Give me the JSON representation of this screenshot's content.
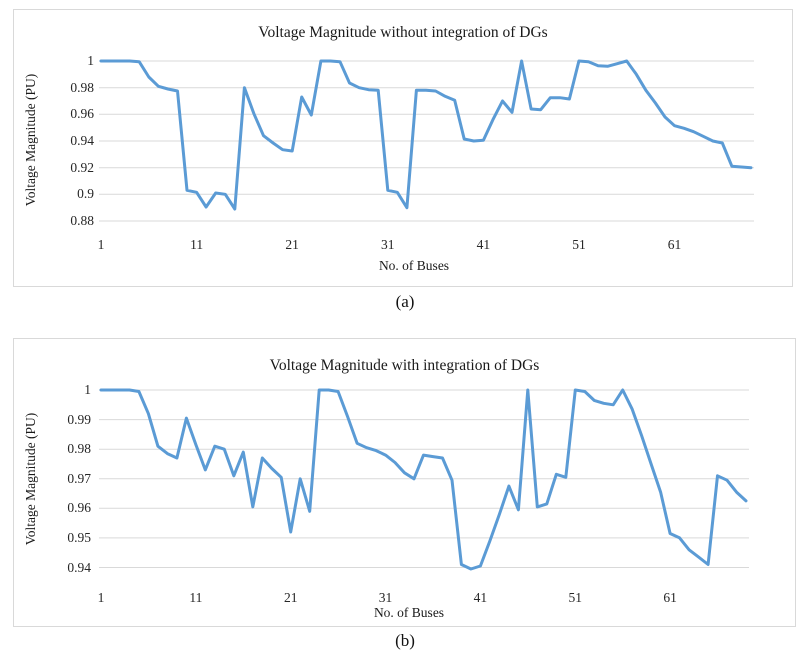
{
  "colors": {
    "line": "#5b9bd5",
    "grid": "#d9d9d9",
    "panel_border": "#d9d9d9",
    "text": "#1a1a1a"
  },
  "captions": {
    "a": "(a)",
    "b": "(b)"
  },
  "chart_data": [
    {
      "type": "line",
      "title": "Voltage Magnitude without integration of DGs",
      "xlabel": "No. of Buses",
      "ylabel": "Voltage Magnitude (PU)",
      "legend": "none",
      "grid": "horizontal-only",
      "ylim": [
        0.88,
        1.0
      ],
      "x_range": [
        1,
        69
      ],
      "x_ticks": [
        1,
        11,
        21,
        31,
        41,
        51,
        61
      ],
      "y_tick_labels": [
        "1",
        "0.98",
        "0.96",
        "0.94",
        "0.92",
        "0.9",
        "0.88"
      ],
      "values": [
        1.0,
        1.0,
        1.0,
        1.0,
        0.9995,
        0.988,
        0.981,
        0.979,
        0.9775,
        0.903,
        0.9015,
        0.8905,
        0.901,
        0.9,
        0.889,
        0.98,
        0.9605,
        0.944,
        0.9385,
        0.9335,
        0.9325,
        0.973,
        0.9595,
        1.0,
        1.0,
        0.9995,
        0.9835,
        0.98,
        0.9785,
        0.978,
        0.903,
        0.9015,
        0.89,
        0.978,
        0.978,
        0.9775,
        0.9735,
        0.9705,
        0.9415,
        0.94,
        0.9405,
        0.956,
        0.97,
        0.9615,
        1.0,
        0.964,
        0.9635,
        0.9725,
        0.9725,
        0.9715,
        1.0,
        0.9995,
        0.9965,
        0.996,
        0.998,
        1.0,
        0.99,
        0.978,
        0.9685,
        0.958,
        0.9515,
        0.9495,
        0.947,
        0.9435,
        0.94,
        0.9385,
        0.921,
        0.9205,
        0.92
      ]
    },
    {
      "type": "line",
      "title": "Voltage Magnitude with integration of DGs",
      "xlabel": "No. of Buses",
      "ylabel": "Voltage Magnitude (PU)",
      "legend": "none",
      "grid": "horizontal-only",
      "ylim": [
        0.94,
        1.0
      ],
      "x_range": [
        1,
        69
      ],
      "x_ticks": [
        1,
        11,
        21,
        31,
        41,
        51,
        61
      ],
      "y_tick_labels": [
        "1",
        "0.99",
        "0.98",
        "0.97",
        "0.96",
        "0.95",
        "0.94"
      ],
      "values": [
        1.0,
        1.0,
        1.0,
        1.0,
        0.9995,
        0.992,
        0.981,
        0.9785,
        0.977,
        0.9905,
        0.9815,
        0.973,
        0.981,
        0.98,
        0.971,
        0.979,
        0.9605,
        0.977,
        0.9735,
        0.9705,
        0.952,
        0.97,
        0.959,
        1.0,
        1.0,
        0.9995,
        0.991,
        0.982,
        0.9805,
        0.9795,
        0.978,
        0.9755,
        0.972,
        0.97,
        0.978,
        0.9775,
        0.977,
        0.9695,
        0.941,
        0.9395,
        0.9405,
        0.949,
        0.958,
        0.9675,
        0.9595,
        1.0,
        0.9605,
        0.9615,
        0.9715,
        0.9705,
        1.0,
        0.9995,
        0.9965,
        0.9955,
        0.995,
        1.0,
        0.9935,
        0.9845,
        0.975,
        0.9655,
        0.9515,
        0.95,
        0.946,
        0.9435,
        0.941,
        0.971,
        0.9695,
        0.9655,
        0.9625
      ]
    }
  ]
}
